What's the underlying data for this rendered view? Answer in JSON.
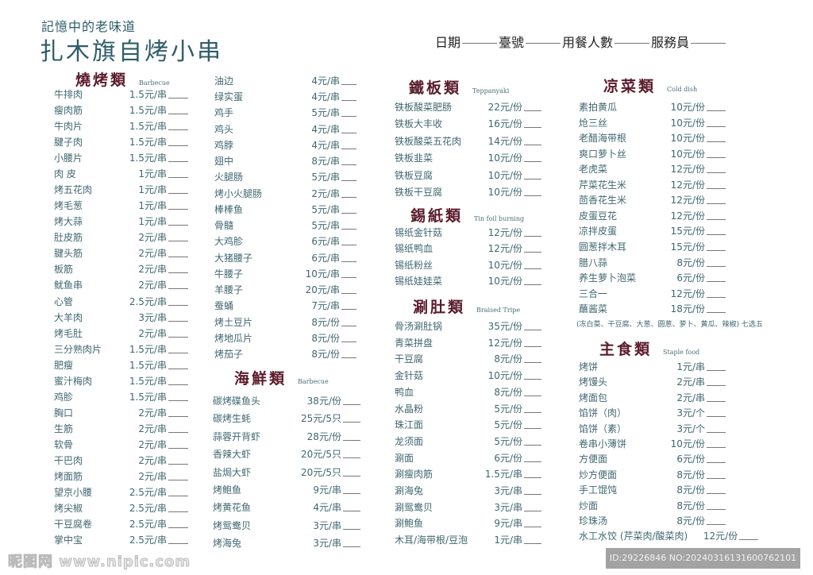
{
  "header": {
    "slogan": "記憶中的老味道",
    "title": "扎木旗自烤小串",
    "form_fields": [
      "日期",
      "臺號",
      "用餐人數",
      "服務員"
    ]
  },
  "colors": {
    "heading": "#5b1c2c",
    "text": "#3f6670",
    "title": "#2f5d68"
  },
  "sections": [
    {
      "id": "barbecue",
      "title": "燒烤類",
      "subtitle": "Barbecue",
      "items": [
        {
          "name": "牛排肉",
          "price": "1.5元/串"
        },
        {
          "name": "瘦肉筋",
          "price": "1.5元/串"
        },
        {
          "name": "牛肉片",
          "price": "1.5元/串"
        },
        {
          "name": "腱子肉",
          "price": "1.5元/串"
        },
        {
          "name": "小腰片",
          "price": "1.5元/串"
        },
        {
          "name": "肉 皮",
          "price": "1元/串"
        },
        {
          "name": "烤五花肉",
          "price": "1元/串"
        },
        {
          "name": "烤毛葱",
          "price": "1元/串"
        },
        {
          "name": "烤大蒜",
          "price": "1元/串"
        },
        {
          "name": "肚皮筋",
          "price": "2元/串"
        },
        {
          "name": "腱头筋",
          "price": "2元/串"
        },
        {
          "name": "板筋",
          "price": "2元/串"
        },
        {
          "name": "鱿鱼串",
          "price": "2元/串"
        },
        {
          "name": "心管",
          "price": "2.5元/串"
        },
        {
          "name": "大羊肉",
          "price": "3元/串"
        },
        {
          "name": "烤毛肚",
          "price": "2元/串"
        },
        {
          "name": "三分熟肉片",
          "price": "1.5元/串"
        },
        {
          "name": "肥瘦",
          "price": "1.5元/串"
        },
        {
          "name": "蜜汁梅肉",
          "price": "1.5元/串"
        },
        {
          "name": "鸡胗",
          "price": "1.5元/串"
        },
        {
          "name": "胸口",
          "price": "2元/串"
        },
        {
          "name": "生筋",
          "price": "2元/串"
        },
        {
          "name": "软骨",
          "price": "2元/串"
        },
        {
          "name": "干巴肉",
          "price": "2元/串"
        },
        {
          "name": "烤面筋",
          "price": "2元/串"
        },
        {
          "name": "望京小腰",
          "price": "2.5元/串"
        },
        {
          "name": "烤尖椒",
          "price": "2.5元/串"
        },
        {
          "name": "干豆腐卷",
          "price": "2.5元/串"
        },
        {
          "name": "掌中宝",
          "price": "2.5元/串"
        }
      ]
    },
    {
      "id": "barbecue2",
      "title": "",
      "subtitle": "",
      "items": [
        {
          "name": "油边",
          "price": "4元/串"
        },
        {
          "name": "绿实蛋",
          "price": "4元/串"
        },
        {
          "name": "鸡手",
          "price": "5元/串"
        },
        {
          "name": "鸡头",
          "price": "4元/串"
        },
        {
          "name": "鸡脖",
          "price": "4元/串"
        },
        {
          "name": "翅中",
          "price": "8元/串"
        },
        {
          "name": "火腿肠",
          "price": "5元/串"
        },
        {
          "name": "烤小火腿肠",
          "price": "2元/串"
        },
        {
          "name": "棒棒鱼",
          "price": "5元/串"
        },
        {
          "name": "骨髓",
          "price": "5元/串"
        },
        {
          "name": "大鸡胗",
          "price": "6元/串"
        },
        {
          "name": "大猪腰子",
          "price": "6元/串"
        },
        {
          "name": "牛腰子",
          "price": "10元/串"
        },
        {
          "name": "羊腰子",
          "price": "20元/串"
        },
        {
          "name": "蚕蛹",
          "price": "7元/串"
        },
        {
          "name": "烤土豆片",
          "price": "8元/份"
        },
        {
          "name": "烤地瓜片",
          "price": "8元/份"
        },
        {
          "name": "烤茄子",
          "price": "8元/份"
        }
      ]
    },
    {
      "id": "seafood",
      "title": "海鮮類",
      "subtitle": "Barbecue",
      "items": [
        {
          "name": "碳烤碟鱼头",
          "price": "38元/份"
        },
        {
          "name": "碳烤生蚝",
          "price": "25元/5只"
        },
        {
          "name": "蒜蓉开背虾",
          "price": "28元/份"
        },
        {
          "name": "香辣大虾",
          "price": "20元/5只"
        },
        {
          "name": "盐焗大虾",
          "price": "20元/5只"
        },
        {
          "name": "烤鲍鱼",
          "price": "9元/串"
        },
        {
          "name": "烤黄花鱼",
          "price": "4元/串"
        },
        {
          "name": "烤鸳鸯贝",
          "price": "3元/串"
        },
        {
          "name": "烤海兔",
          "price": "3元/串"
        }
      ]
    },
    {
      "id": "teppanyaki",
      "title": "鐵板類",
      "subtitle": "Teppanyaki",
      "items": [
        {
          "name": "铁板酸菜肥肠",
          "price": "22元/份"
        },
        {
          "name": "铁板大丰收",
          "price": "16元/份"
        },
        {
          "name": "铁板酸菜五花肉",
          "price": "14元/份"
        },
        {
          "name": "铁板韭菜",
          "price": "10元/份"
        },
        {
          "name": "铁板豆腐",
          "price": "10元/份"
        },
        {
          "name": "铁板干豆腐",
          "price": "10元/份"
        }
      ]
    },
    {
      "id": "tinfoil",
      "title": "錫紙類",
      "subtitle": "Tin foil burning",
      "items": [
        {
          "name": "锡纸金针菇",
          "price": "12元/份"
        },
        {
          "name": "锡纸鸭血",
          "price": "12元/份"
        },
        {
          "name": "锡纸粉丝",
          "price": "10元/份"
        },
        {
          "name": "锡纸娃娃菜",
          "price": "10元/份"
        }
      ]
    },
    {
      "id": "tripe",
      "title": "涮肚類",
      "subtitle": "Braised Tripe",
      "items": [
        {
          "name": "骨汤涮肚锅",
          "price": "35元/份"
        },
        {
          "name": "青菜拼盘",
          "price": "12元/份"
        },
        {
          "name": "干豆腐",
          "price": "8元/份"
        },
        {
          "name": "金针菇",
          "price": "10元/份"
        },
        {
          "name": "鸭血",
          "price": "8元/份"
        },
        {
          "name": "水晶粉",
          "price": "5元/份"
        },
        {
          "name": "珠江面",
          "price": "5元/份"
        },
        {
          "name": "龙须面",
          "price": "5元/份"
        },
        {
          "name": "涮面",
          "price": "6元/份"
        },
        {
          "name": "涮瘦肉筋",
          "price": "1.5元/串"
        },
        {
          "name": "涮海兔",
          "price": "3元/串"
        },
        {
          "name": "涮鸳鸯贝",
          "price": "3元/串"
        },
        {
          "name": "涮鲍鱼",
          "price": "9元/串"
        },
        {
          "name": "木耳/海带根/豆泡",
          "price": "1元/串"
        }
      ]
    },
    {
      "id": "colddish",
      "title": "凉菜類",
      "subtitle": "Cold dish",
      "note": "(冻白菜、干豆腐、大葱、圆葱、萝卜、黄瓜、辣椒) 七选五",
      "items": [
        {
          "name": "素拍黄瓜",
          "price": "10元/份"
        },
        {
          "name": "炝三丝",
          "price": "10元/份"
        },
        {
          "name": "老醋海带根",
          "price": "10元/份"
        },
        {
          "name": "爽口萝卜丝",
          "price": "10元/份"
        },
        {
          "name": "老虎菜",
          "price": "12元/份"
        },
        {
          "name": "芹菜花生米",
          "price": "12元/份"
        },
        {
          "name": "茴香花生米",
          "price": "12元/份"
        },
        {
          "name": "皮蛋豆花",
          "price": "12元/份"
        },
        {
          "name": "凉拌皮蛋",
          "price": "15元/份"
        },
        {
          "name": "圆葱拌木耳",
          "price": "15元/份"
        },
        {
          "name": "腊八蒜",
          "price": "8元/份"
        },
        {
          "name": "养生萝卜泡菜",
          "price": "6元/份"
        },
        {
          "name": "三合一",
          "price": "12元/份"
        },
        {
          "name": "蘸酱菜",
          "price": "18元/份"
        }
      ]
    },
    {
      "id": "staple",
      "title": "主食類",
      "subtitle": "Staple food",
      "items": [
        {
          "name": "烤饼",
          "price": "1元/串"
        },
        {
          "name": "烤馒头",
          "price": "2元/串"
        },
        {
          "name": "烤面包",
          "price": "2元/串"
        },
        {
          "name": "馅饼（肉）",
          "price": "3元/个"
        },
        {
          "name": "馅饼（素）",
          "price": "3元/个"
        },
        {
          "name": "卷串小薄饼",
          "price": "10元/份"
        },
        {
          "name": "方便面",
          "price": "6元/份"
        },
        {
          "name": "炒方便面",
          "price": "8元/份"
        },
        {
          "name": "手工馄饨",
          "price": "8元/份"
        },
        {
          "name": "炒面",
          "price": "8元/份"
        },
        {
          "name": "珍珠汤",
          "price": "8元/份"
        },
        {
          "name": "水工水饺 (芹菜肉/酸菜肉)",
          "price": "12元/份"
        }
      ]
    }
  ],
  "watermark": {
    "site": "昵图网 www.nipic.com",
    "id": "ID:29226846 NO:20240316131600762101"
  }
}
